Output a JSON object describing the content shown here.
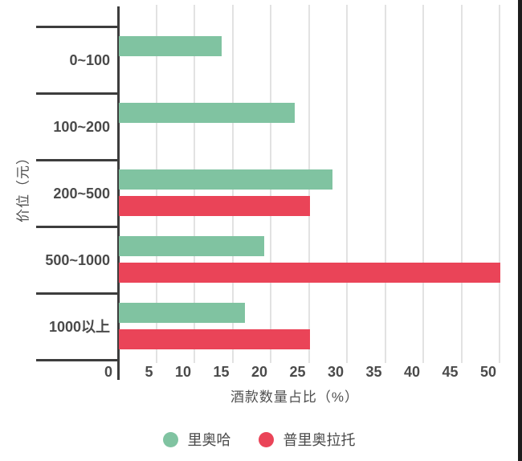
{
  "chart_data": {
    "type": "bar",
    "orientation": "horizontal",
    "title": "",
    "xlabel": "酒款数量占比（%）",
    "ylabel": "价位（元）",
    "categories": [
      "0~100",
      "100~200",
      "200~500",
      "500~1000",
      "1000以上"
    ],
    "series": [
      {
        "name": "里奥哈",
        "color": "#80c3a1",
        "values": [
          13.5,
          23,
          28,
          19,
          16.5
        ]
      },
      {
        "name": "普里奥拉托",
        "color": "#ea4458",
        "values": [
          0,
          0,
          25,
          50,
          25
        ]
      }
    ],
    "x_ticks": [
      0,
      5,
      10,
      15,
      20,
      25,
      30,
      35,
      40,
      45,
      50
    ],
    "xlim": [
      0,
      50.8
    ],
    "grid": "vertical-only",
    "legend_position": "bottom",
    "colors": {
      "gridline": "#e2e2e2",
      "axis": "#3d3d3d",
      "label_text": "#4a4a4a",
      "background": "#ffffff",
      "right_border": "#1d1d1d"
    }
  }
}
